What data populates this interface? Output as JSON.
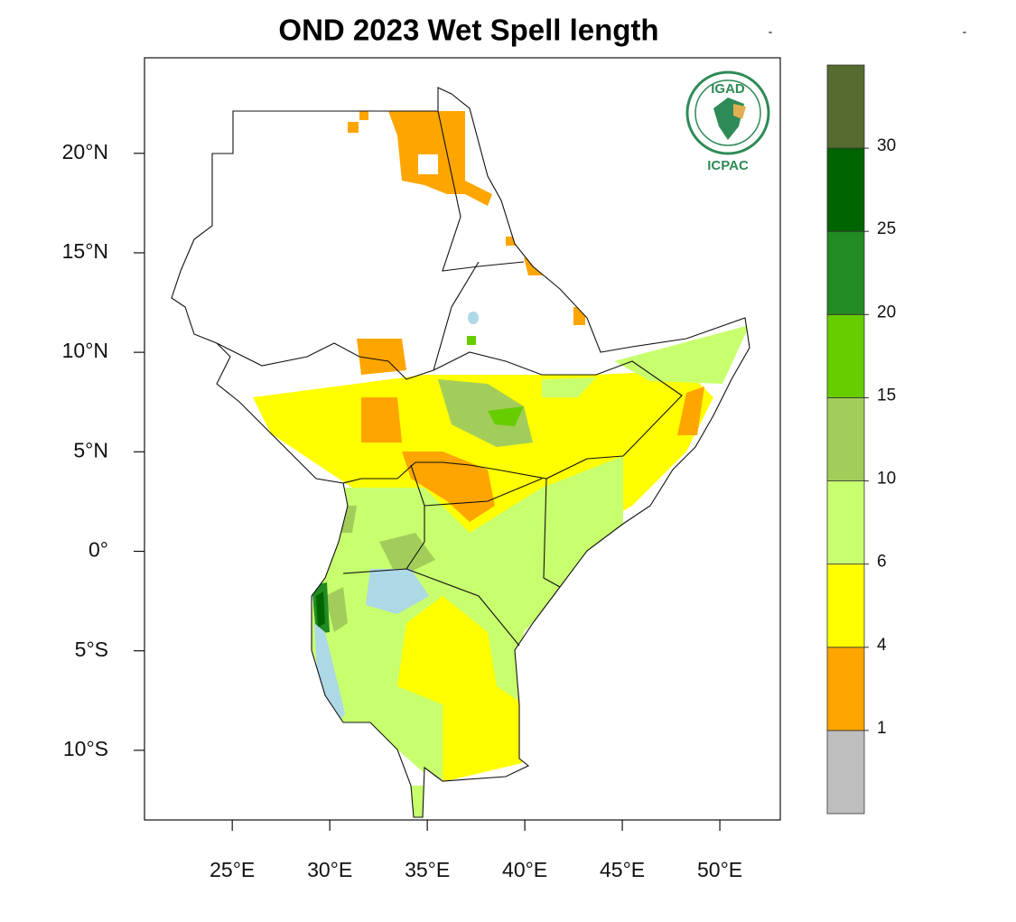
{
  "chart_data": {
    "type": "map",
    "title": "OND 2023 Wet Spell length",
    "xlim": [
      20.5,
      53.1
    ],
    "ylim": [
      -13.5,
      24.8
    ],
    "xticks": [
      {
        "value": 25,
        "label": "25°E"
      },
      {
        "value": 30,
        "label": "30°E"
      },
      {
        "value": 35,
        "label": "35°E"
      },
      {
        "value": 40,
        "label": "40°E"
      },
      {
        "value": 45,
        "label": "45°E"
      },
      {
        "value": 50,
        "label": "50°E"
      }
    ],
    "yticks": [
      {
        "value": 20,
        "label": "20°N"
      },
      {
        "value": 15,
        "label": "15°N"
      },
      {
        "value": 10,
        "label": "10°N"
      },
      {
        "value": 5,
        "label": "5°N"
      },
      {
        "value": 0,
        "label": "0°"
      },
      {
        "value": -5,
        "label": "5°S"
      },
      {
        "value": -10,
        "label": "10°S"
      }
    ],
    "colorbar": {
      "colors": [
        "#bebebe",
        "#ffa500",
        "#ffff00",
        "#c8ff6e",
        "#a2cd5a",
        "#66cd00",
        "#228b22",
        "#006400",
        "#556b2f"
      ],
      "ticks": [
        1,
        4,
        6,
        10,
        15,
        20,
        25,
        30
      ]
    }
  },
  "logo": {
    "top": "IGAD",
    "bottom": "ICPAC"
  },
  "header_marks": [
    "-",
    "-"
  ]
}
